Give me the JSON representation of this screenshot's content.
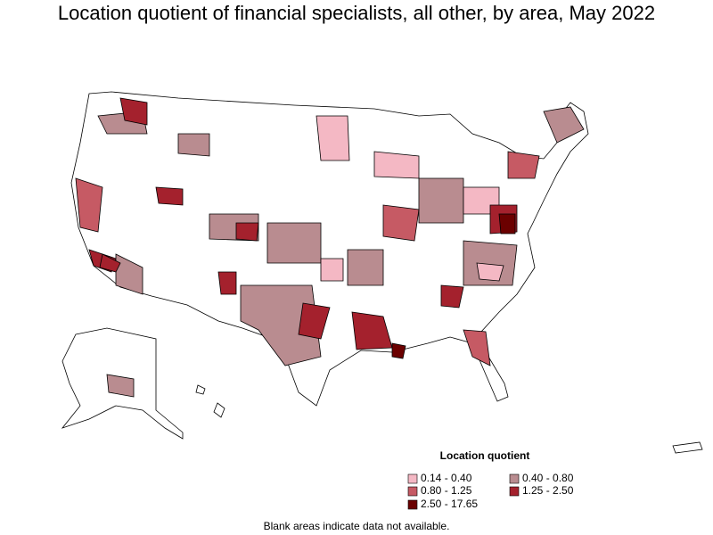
{
  "title": "Location quotient of financial specialists, all other, by area, May 2022",
  "legend": {
    "title": "Location quotient",
    "items": [
      {
        "label": "0.14 - 0.40",
        "color": "#f4b8c4"
      },
      {
        "label": "0.40 - 0.80",
        "color": "#b98c90"
      },
      {
        "label": "0.80 - 1.25",
        "color": "#c65a64"
      },
      {
        "label": "1.25 - 2.50",
        "color": "#a4212d"
      },
      {
        "label": "2.50 - 17.65",
        "color": "#6b0000"
      }
    ]
  },
  "note": "Blank areas indicate data not available."
}
